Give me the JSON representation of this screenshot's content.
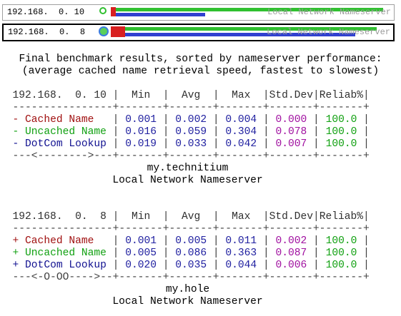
{
  "nameservers": [
    {
      "ip": "192.168.  0. 10",
      "label": "Local Network Nameserver"
    },
    {
      "ip": "192.168.  0.  8",
      "label": "Local Network Nameserver"
    }
  ],
  "summary": [
    "Final benchmark results, sorted by nameserver performance:",
    "(average cached name retrieval speed, fastest to slowest)"
  ],
  "column_separator": "|",
  "rule": "----------------+-------+-------+-------+-------+-------+",
  "columns": [
    "Min",
    "Avg",
    "Max",
    "Std.Dev",
    "Reliab%"
  ],
  "tables": [
    {
      "ip": "192.168.  0. 10",
      "rows": [
        {
          "prefix": "-",
          "name": "Cached Name",
          "values": [
            "0.001",
            "0.002",
            "0.004",
            "0.000",
            "100.0"
          ]
        },
        {
          "prefix": "-",
          "name": "Uncached Name",
          "values": [
            "0.016",
            "0.059",
            "0.304",
            "0.078",
            "100.0"
          ]
        },
        {
          "prefix": "-",
          "name": "DotCom Lookup",
          "values": [
            "0.019",
            "0.033",
            "0.042",
            "0.007",
            "100.0"
          ]
        }
      ],
      "footer_rule": "---<-------->---+-------+-------+-------+-------+-------+",
      "host": "my.technitium",
      "description": "Local Network Nameserver"
    },
    {
      "ip": "192.168.  0.  8",
      "rows": [
        {
          "prefix": "+",
          "name": "Cached Name",
          "values": [
            "0.001",
            "0.005",
            "0.011",
            "0.002",
            "100.0"
          ]
        },
        {
          "prefix": "+",
          "name": "Uncached Name",
          "values": [
            "0.005",
            "0.086",
            "0.363",
            "0.087",
            "100.0"
          ]
        },
        {
          "prefix": "+",
          "name": "DotCom Lookup",
          "values": [
            "0.020",
            "0.035",
            "0.044",
            "0.006",
            "100.0"
          ]
        }
      ],
      "footer_rule": "---<-O-OO---->--+-------+-------+-------+-------+-------+",
      "host": "my.hole",
      "description": "Local Network Nameserver"
    }
  ]
}
